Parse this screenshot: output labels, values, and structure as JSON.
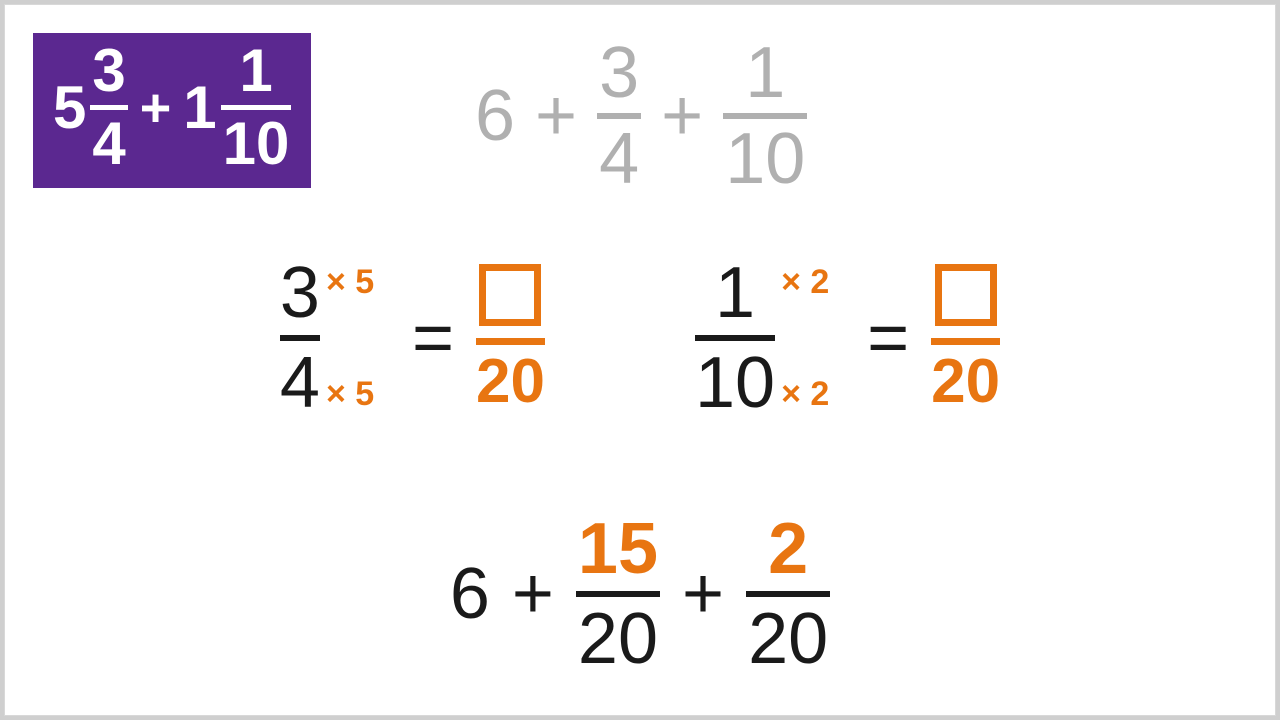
{
  "colors": {
    "purple": "#5b2890",
    "gray": "#b0b0b0",
    "orange": "#e87511",
    "black": "#1a1a1a",
    "white": "#ffffff",
    "page_border": "#d8d8d8"
  },
  "badge": {
    "mixed1": {
      "whole": "5",
      "num": "3",
      "den": "4"
    },
    "plus": "+",
    "mixed2": {
      "whole": "1",
      "num": "1",
      "den": "10"
    }
  },
  "row1_gray": {
    "whole": "6",
    "plus": "+",
    "f1": {
      "num": "3",
      "den": "4"
    },
    "f2": {
      "num": "1",
      "den": "10"
    }
  },
  "row2": {
    "eq1": {
      "src": {
        "num": "3",
        "den": "4"
      },
      "mult": "× 5",
      "equals": "=",
      "result_den": "20"
    },
    "eq2": {
      "src": {
        "num": "1",
        "den": "10"
      },
      "mult": "× 2",
      "equals": "=",
      "result_den": "20"
    }
  },
  "row3": {
    "whole": "6",
    "plus": "+",
    "f1": {
      "num": "15",
      "den": "20"
    },
    "f2": {
      "num": "2",
      "den": "20"
    }
  },
  "style": {
    "badge_fontsize": 60,
    "body_fontsize": 72,
    "mult_fontsize": 34,
    "frac_bar_thickness": 6,
    "box_size": 62,
    "box_border": 7
  }
}
